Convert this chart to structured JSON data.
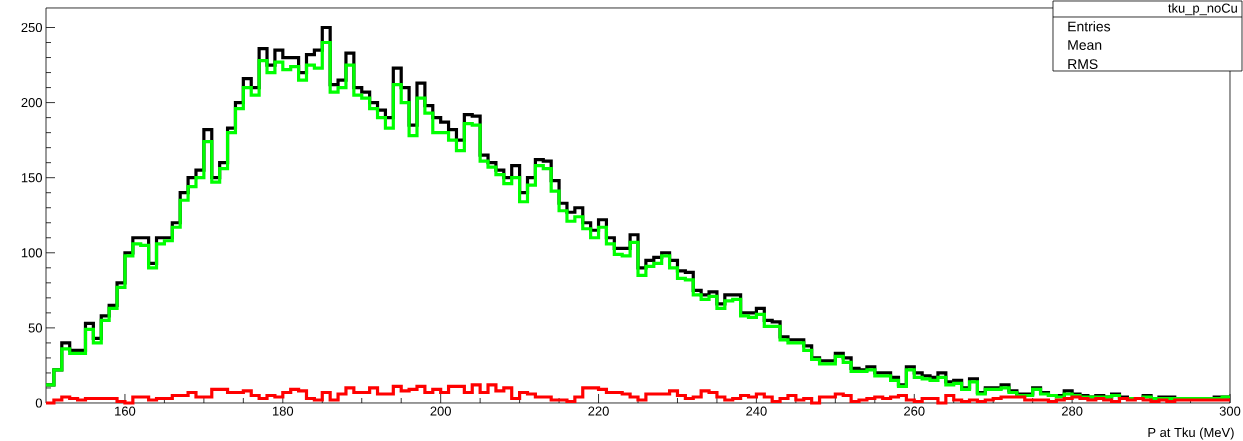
{
  "chart_data": {
    "type": "histogram",
    "xlabel": "P at Tku (MeV)",
    "annotations": [
      "tku_p_noCu",
      "Entries",
      "Mean",
      "RMS"
    ],
    "bins": [
      150,
      151,
      152,
      153,
      154,
      155,
      156,
      157,
      158,
      159,
      160,
      161,
      162,
      163,
      164,
      165,
      166,
      167,
      168,
      169,
      170,
      171,
      172,
      173,
      174,
      175,
      176,
      177,
      178,
      179,
      180,
      181,
      182,
      183,
      184,
      185,
      186,
      187,
      188,
      189,
      190,
      191,
      192,
      193,
      194,
      195,
      196,
      197,
      198,
      199,
      200,
      201,
      202,
      203,
      204,
      205,
      206,
      207,
      208,
      209,
      210,
      211,
      212,
      213,
      214,
      215,
      216,
      217,
      218,
      219,
      220,
      221,
      222,
      223,
      224,
      225,
      226,
      227,
      228,
      229,
      230,
      231,
      232,
      233,
      234,
      235,
      236,
      237,
      238,
      239,
      240,
      241,
      242,
      243,
      244,
      245,
      246,
      247,
      248,
      249,
      250,
      251,
      252,
      253,
      254,
      255,
      256,
      257,
      258,
      259,
      260,
      261,
      262,
      263,
      264,
      265,
      266,
      267,
      268,
      269,
      270,
      271,
      272,
      273,
      274,
      275,
      276,
      277,
      278,
      279,
      280,
      281,
      282,
      283,
      284,
      285,
      286,
      287,
      288,
      289,
      290,
      291,
      292,
      293,
      294,
      295,
      296,
      297,
      298,
      299,
      300
    ],
    "series": [
      {
        "color": "#000000",
        "values": [
          12,
          22,
          40,
          35,
          35,
          53,
          43,
          58,
          65,
          80,
          100,
          110,
          110,
          93,
          110,
          110,
          120,
          140,
          150,
          155,
          182,
          150,
          160,
          183,
          200,
          216,
          210,
          236,
          225,
          235,
          230,
          230,
          220,
          232,
          235,
          250,
          212,
          215,
          233,
          210,
          207,
          200,
          195,
          190,
          223,
          210,
          185,
          213,
          198,
          190,
          187,
          182,
          175,
          192,
          191,
          165,
          160,
          155,
          150,
          158,
          140,
          150,
          162,
          161,
          148,
          133,
          127,
          130,
          120,
          115,
          122,
          110,
          103,
          103,
          112,
          90,
          95,
          97,
          100,
          95,
          88,
          87,
          75,
          72,
          74,
          66,
          72,
          72,
          60,
          60,
          63,
          55,
          54,
          44,
          42,
          42,
          38,
          30,
          28,
          28,
          33,
          30,
          23,
          22,
          24,
          20,
          20,
          17,
          12,
          24,
          20,
          18,
          17,
          20,
          14,
          15,
          10,
          16,
          7,
          10,
          10,
          12,
          8,
          6,
          6,
          10,
          7,
          5,
          5,
          8,
          6,
          5,
          4,
          5,
          4,
          6,
          4,
          3,
          3,
          5,
          3,
          4,
          4,
          3,
          3,
          3,
          3,
          3,
          4,
          4
        ]
      },
      {
        "color": "#00ff00",
        "values": [
          12,
          22,
          36,
          33,
          33,
          49,
          40,
          55,
          63,
          77,
          98,
          106,
          105,
          90,
          106,
          108,
          117,
          135,
          144,
          150,
          174,
          147,
          156,
          180,
          196,
          210,
          205,
          228,
          220,
          227,
          222,
          224,
          215,
          225,
          223,
          240,
          207,
          210,
          225,
          205,
          203,
          196,
          190,
          183,
          212,
          200,
          178,
          203,
          193,
          180,
          180,
          175,
          168,
          186,
          185,
          161,
          157,
          152,
          146,
          150,
          134,
          145,
          158,
          156,
          141,
          128,
          121,
          124,
          116,
          110,
          117,
          106,
          99,
          98,
          107,
          85,
          91,
          93,
          98,
          90,
          83,
          82,
          72,
          69,
          71,
          63,
          68,
          69,
          58,
          57,
          59,
          51,
          51,
          42,
          40,
          40,
          35,
          29,
          26,
          26,
          31,
          27,
          21,
          21,
          22,
          18,
          18,
          15,
          11,
          22,
          17,
          16,
          15,
          17,
          12,
          13,
          9,
          14,
          6,
          9,
          9,
          10,
          7,
          5,
          5,
          9,
          6,
          5,
          4,
          6,
          5,
          4,
          4,
          4,
          4,
          5,
          3,
          3,
          3,
          4,
          3,
          3,
          3,
          3,
          3,
          3,
          3,
          3,
          3,
          4
        ]
      },
      {
        "color": "#ff0000",
        "values": [
          0,
          2,
          4,
          3,
          2,
          3,
          3,
          3,
          3,
          1,
          0,
          4,
          4,
          2,
          3,
          3,
          5,
          5,
          7,
          4,
          4,
          9,
          9,
          7,
          7,
          8,
          5,
          3,
          5,
          4,
          7,
          9,
          8,
          3,
          2,
          7,
          2,
          6,
          10,
          7,
          7,
          10,
          6,
          6,
          11,
          8,
          9,
          11,
          7,
          9,
          7,
          11,
          11,
          7,
          12,
          7,
          12,
          8,
          10,
          3,
          7,
          6,
          4,
          4,
          2,
          2,
          1,
          4,
          10,
          10,
          9,
          7,
          7,
          6,
          4,
          2,
          6,
          6,
          6,
          8,
          5,
          3,
          4,
          8,
          7,
          4,
          2,
          3,
          5,
          4,
          6,
          4,
          1,
          3,
          5,
          2,
          3,
          0,
          4,
          4,
          6,
          5,
          1,
          2,
          3,
          4,
          3,
          4,
          5,
          2,
          1,
          3,
          3,
          0,
          5,
          2,
          1,
          2,
          1,
          2,
          3,
          4,
          4,
          4,
          2,
          2,
          2,
          1,
          2,
          3,
          4,
          3,
          2,
          3,
          2,
          1,
          3,
          2,
          3,
          2,
          1,
          2,
          1,
          2,
          2,
          2,
          2,
          2,
          2,
          2
        ]
      }
    ],
    "xlim": [
      150,
      300
    ],
    "ylim": [
      0,
      263
    ],
    "xticks": [
      160,
      180,
      200,
      220,
      240,
      260,
      280,
      300
    ],
    "yticks": [
      0,
      50,
      100,
      150,
      200,
      250
    ]
  }
}
